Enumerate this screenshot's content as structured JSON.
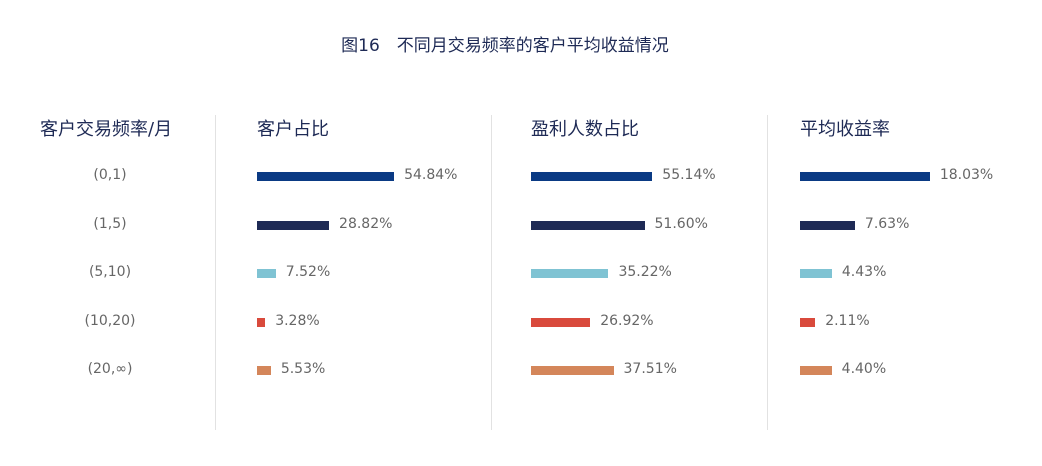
{
  "chart_data": {
    "type": "bar",
    "title": "图16　不同月交易频率的客户平均收益情况",
    "category_header": "客户交易频率/月",
    "categories": [
      "(0,1)",
      "(1,5)",
      "(5,10)",
      "(10,20)",
      "(20,∞)"
    ],
    "colors": [
      "#0a3a84",
      "#1e2a55",
      "#7fc3d3",
      "#d94a3c",
      "#d4865a"
    ],
    "series": [
      {
        "name": "客户占比",
        "values": [
          54.84,
          28.82,
          7.52,
          3.28,
          5.53
        ],
        "labels": [
          "54.84%",
          "28.82%",
          "7.52%",
          "3.28%",
          "5.53%"
        ]
      },
      {
        "name": "盈利人数占比",
        "values": [
          55.14,
          51.6,
          35.22,
          26.92,
          37.51
        ],
        "labels": [
          "55.14%",
          "51.60%",
          "35.22%",
          "26.92%",
          "37.51%"
        ]
      },
      {
        "name": "平均收益率",
        "values": [
          18.03,
          7.63,
          4.43,
          2.11,
          4.4
        ],
        "labels": [
          "18.03%",
          "7.63%",
          "4.43%",
          "2.11%",
          "4.40%"
        ]
      }
    ],
    "unit": "%"
  }
}
